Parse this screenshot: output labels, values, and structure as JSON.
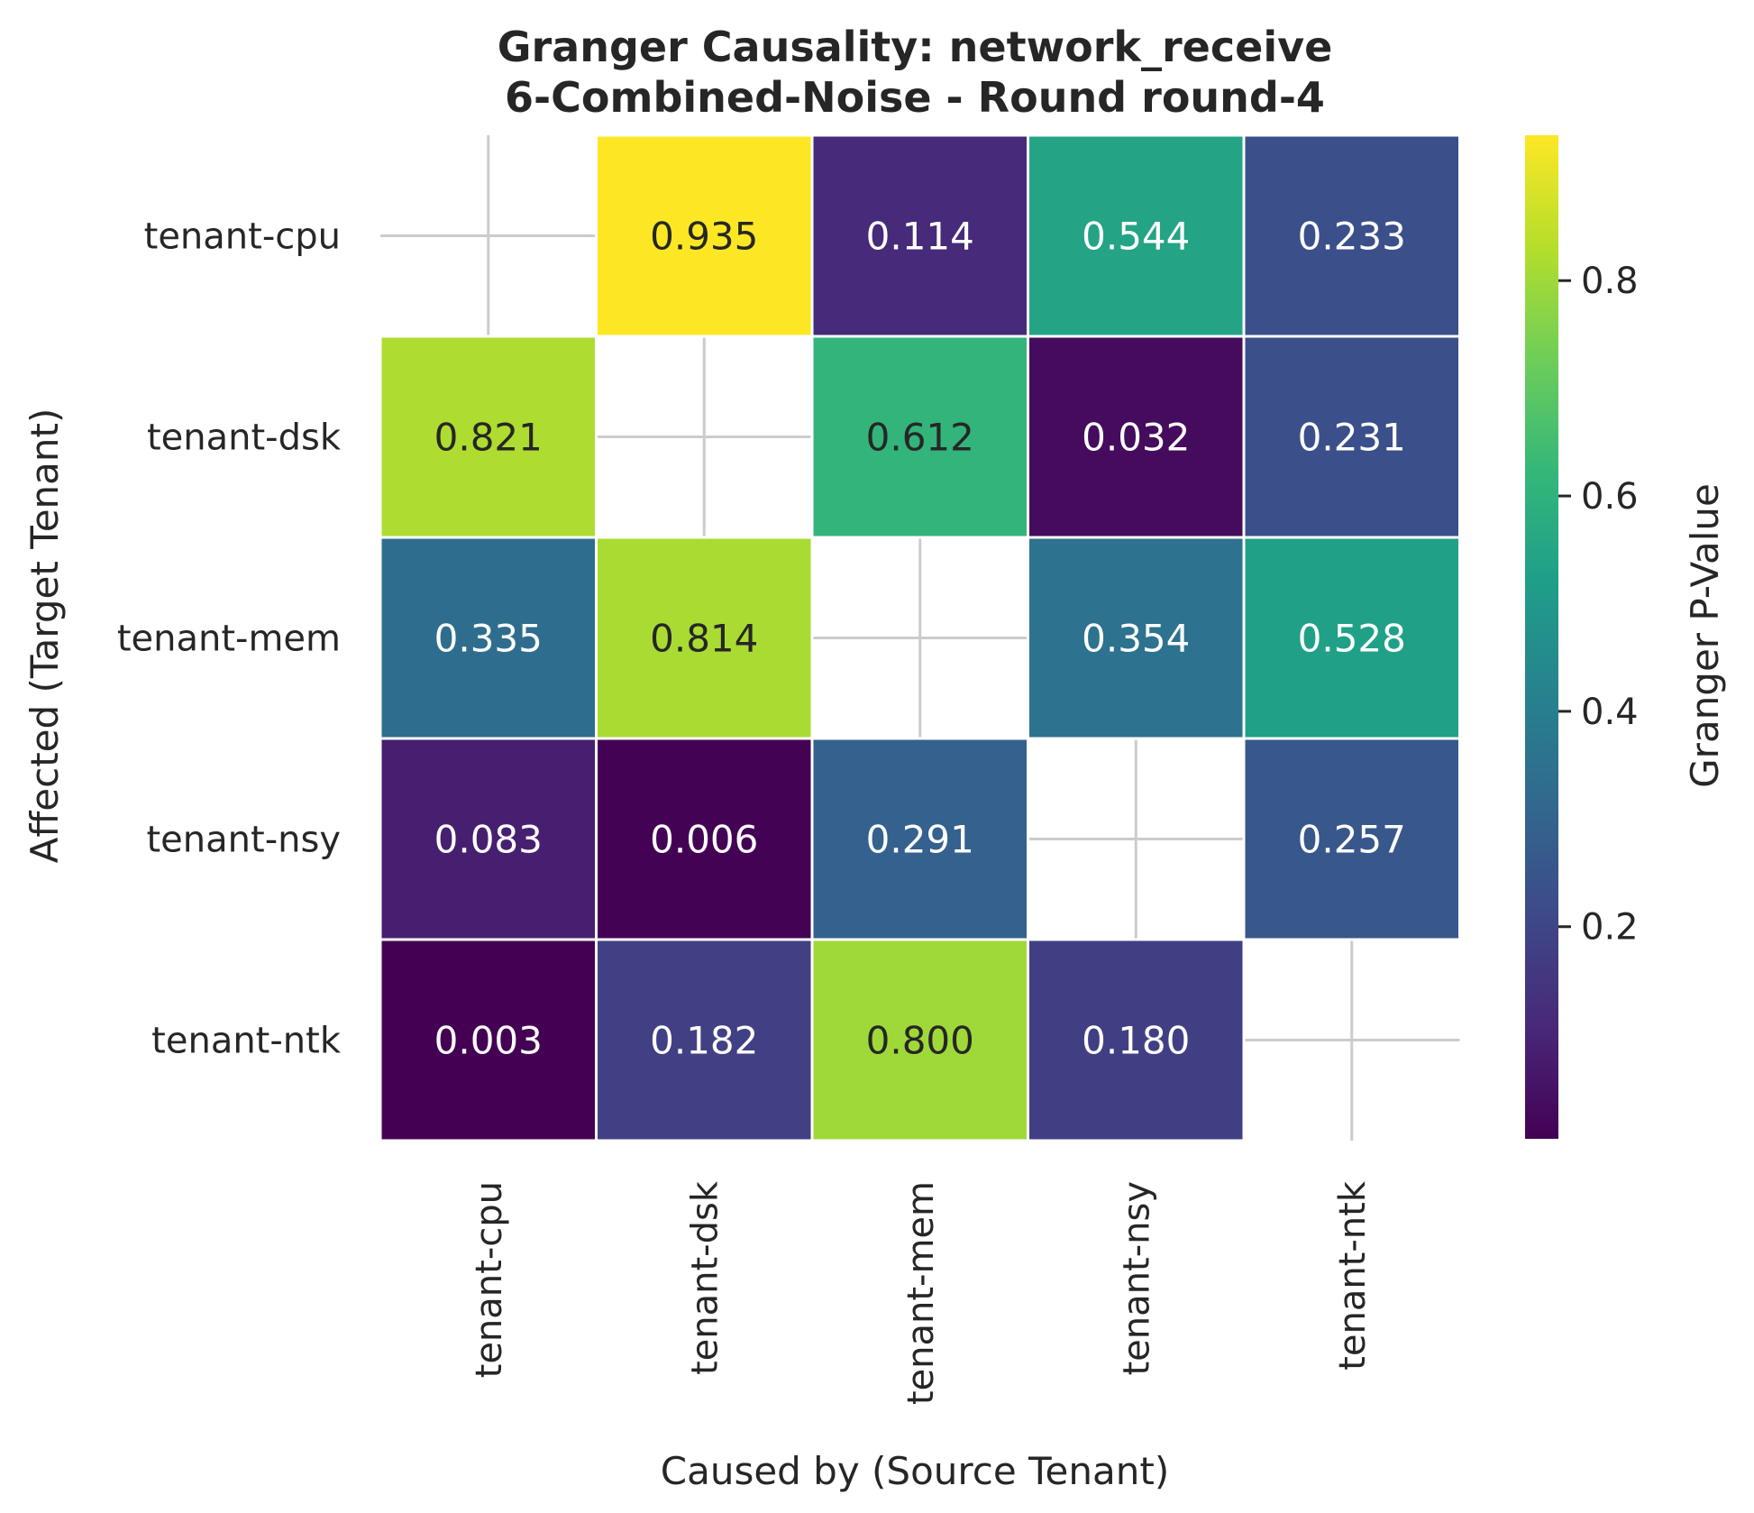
{
  "chart_data": {
    "type": "heatmap",
    "title": [
      "Granger Causality: network_receive",
      "6-Combined-Noise - Round round-4"
    ],
    "xlabel": "Caused by (Source Tenant)",
    "ylabel": "Affected (Target Tenant)",
    "x_categories": [
      "tenant-cpu",
      "tenant-dsk",
      "tenant-mem",
      "tenant-nsy",
      "tenant-ntk"
    ],
    "y_categories": [
      "tenant-cpu",
      "tenant-dsk",
      "tenant-mem",
      "tenant-nsy",
      "tenant-ntk"
    ],
    "values": [
      [
        null,
        0.935,
        0.114,
        0.544,
        0.233
      ],
      [
        0.821,
        null,
        0.612,
        0.032,
        0.231
      ],
      [
        0.335,
        0.814,
        null,
        0.354,
        0.528
      ],
      [
        0.083,
        0.006,
        0.291,
        null,
        0.257
      ],
      [
        0.003,
        0.182,
        0.8,
        0.18,
        null
      ]
    ],
    "value_labels": [
      [
        "",
        "0.935",
        "0.114",
        "0.544",
        "0.233"
      ],
      [
        "0.821",
        "",
        "0.612",
        "0.032",
        "0.231"
      ],
      [
        "0.335",
        "0.814",
        "",
        "0.354",
        "0.528"
      ],
      [
        "0.083",
        "0.006",
        "0.291",
        "",
        "0.257"
      ],
      [
        "0.003",
        "0.182",
        "0.800",
        "0.180",
        ""
      ]
    ],
    "colormap": "viridis",
    "colorbar": {
      "label": "Granger P-Value",
      "range": [
        0.003,
        0.935
      ],
      "ticks": [
        0.2,
        0.4,
        0.6,
        0.8
      ],
      "tick_labels": [
        "0.2",
        "0.4",
        "0.6",
        "0.8"
      ]
    },
    "grid": true,
    "diagonal_masked": true
  }
}
